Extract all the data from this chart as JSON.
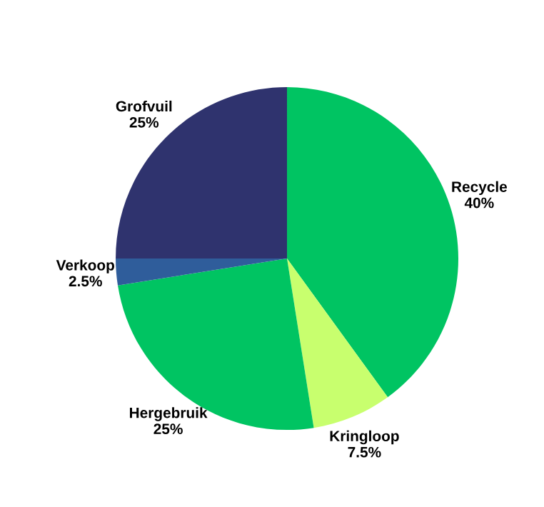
{
  "chart_data": {
    "type": "pie",
    "categories": [
      "Recycle",
      "Kringloop",
      "Hergebruik",
      "Verkoop",
      "Grofvuil"
    ],
    "values": [
      40,
      7.5,
      25,
      2.5,
      25
    ],
    "value_labels": [
      "40%",
      "7.5%",
      "25%",
      "2.5%",
      "25%"
    ],
    "colors": [
      "#00c462",
      "#c8ff6e",
      "#00c462",
      "#2f5d9b",
      "#2f336e"
    ]
  }
}
